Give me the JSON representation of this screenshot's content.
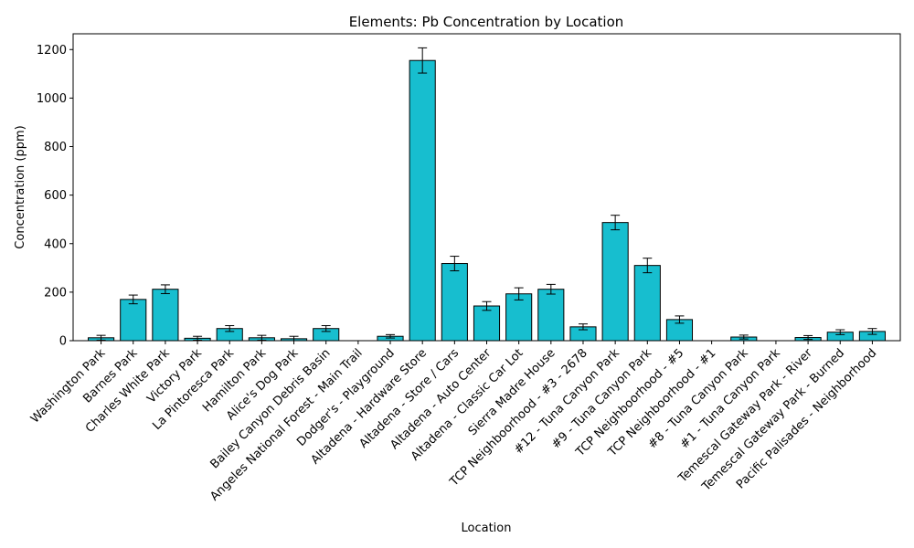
{
  "chart_data": {
    "type": "bar",
    "title": "Elements: Pb Concentration by Location",
    "xlabel": "Location",
    "ylabel": "Concentration (ppm)",
    "ylim": [
      0,
      1265
    ],
    "yticks": [
      0,
      200,
      400,
      600,
      800,
      1000,
      1200
    ],
    "grid": false,
    "bar_color": "#17becf",
    "edge_color": "#000000",
    "categories": [
      "Washington Park",
      "Barnes Park",
      "Charles White Park",
      "Victory Park",
      "La Pintoresca Park",
      "Hamilton Park",
      "Alice's Dog Park",
      "Bailey Canyon Debris Basin",
      "Angeles National Forest - Main Trail",
      "Dodger's - Playground",
      "Altadena - Hardware Store",
      "Altadena - Store / Cars",
      "Altadena - Auto Center",
      "Altadena - Classic Car Lot",
      "Sierra Madre House",
      "TCP Neighboorhood - #3 - 2678",
      "#12 - Tuna Canyon Park",
      "#9 - Tuna Canyon Park",
      "TCP Neighboorhood - #5",
      "TCP Neighboorhood - #1",
      "#8 - Tuna Canyon Park",
      "#1 - Tuna Canyon Park",
      "Temescal Gateway Park - River",
      "Temescal Gateway Park - Burned",
      "Pacific Palisades - Neighborhood"
    ],
    "values": [
      12,
      170,
      212,
      10,
      50,
      12,
      8,
      50,
      0,
      18,
      1155,
      318,
      143,
      193,
      212,
      57,
      487,
      310,
      87,
      0,
      15,
      0,
      13,
      35,
      38
    ],
    "errors": [
      10,
      18,
      18,
      8,
      12,
      10,
      10,
      12,
      0,
      7,
      52,
      30,
      18,
      25,
      20,
      12,
      30,
      30,
      15,
      0,
      8,
      0,
      8,
      10,
      12
    ]
  }
}
